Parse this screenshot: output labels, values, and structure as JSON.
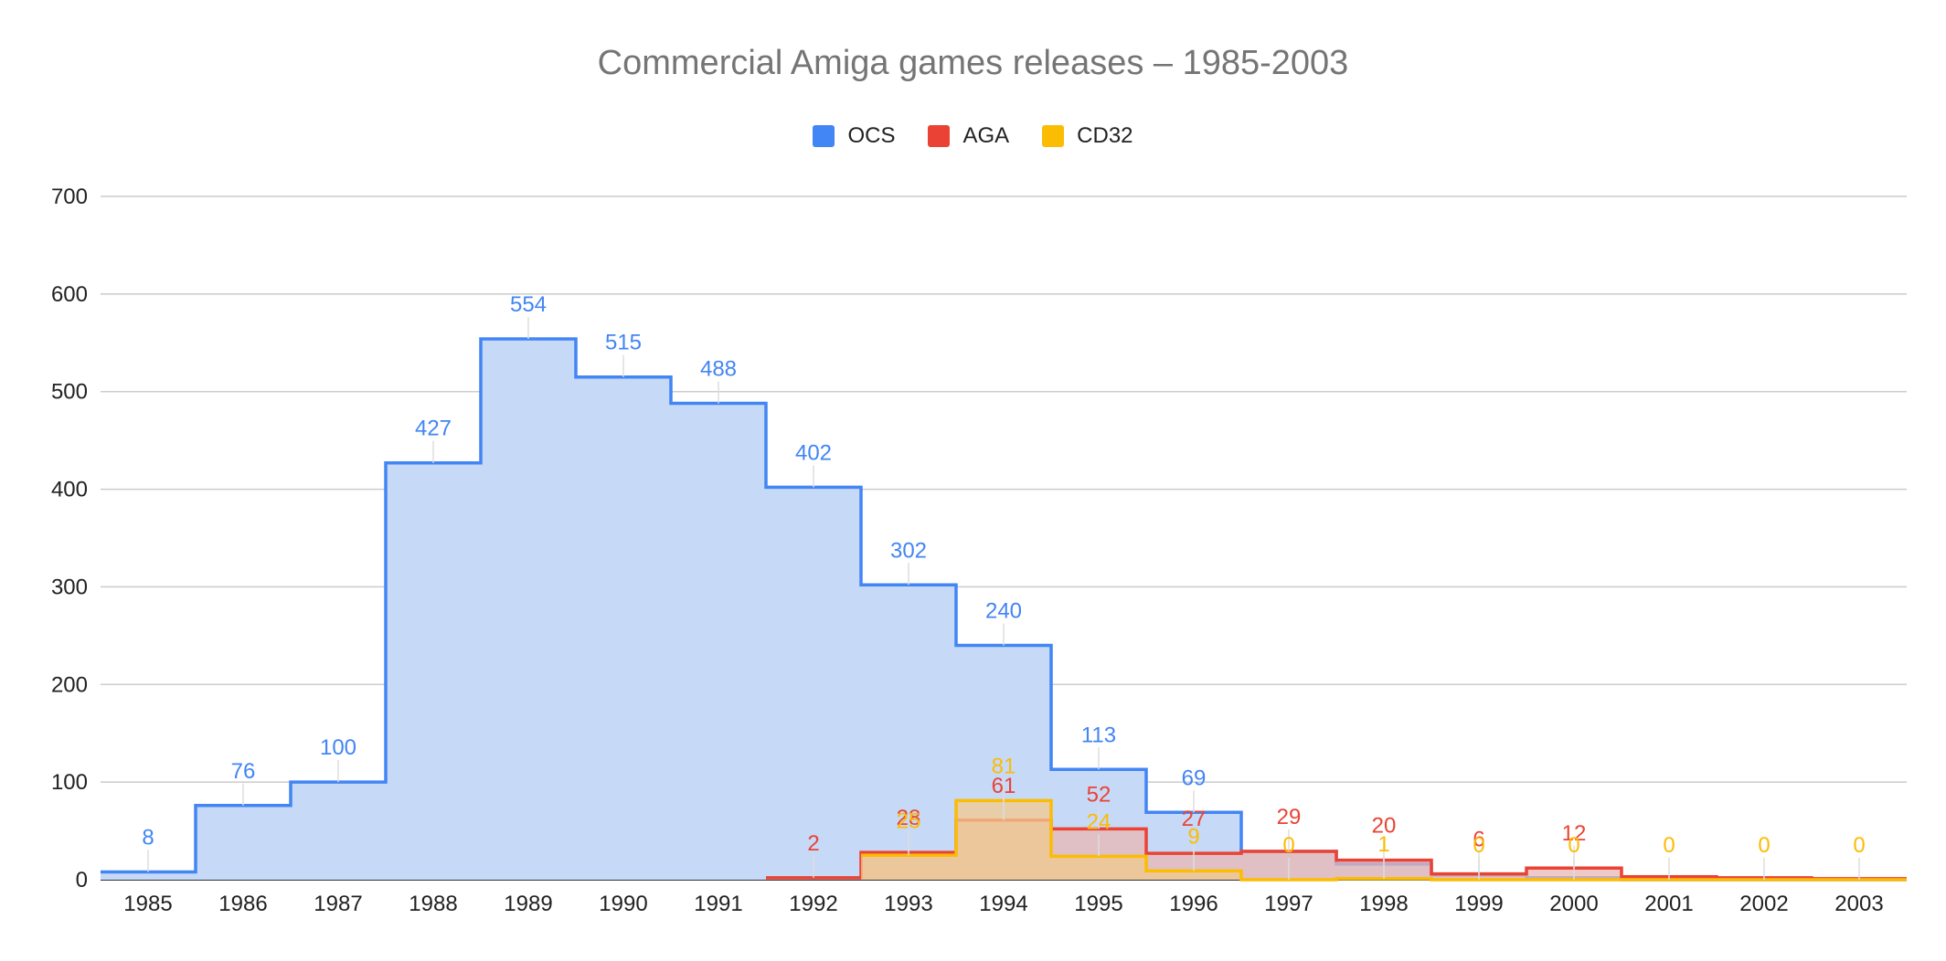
{
  "chart_data": {
    "type": "area",
    "title": "Commercial Amiga games releases – 1985-2003",
    "xlabel": "",
    "ylabel": "",
    "ylim": [
      0,
      700
    ],
    "yticks": [
      "0",
      "100",
      "200",
      "300",
      "400",
      "500",
      "600",
      "700"
    ],
    "categories": [
      "1985",
      "1986",
      "1987",
      "1988",
      "1989",
      "1990",
      "1991",
      "1992",
      "1993",
      "1994",
      "1995",
      "1996",
      "1997",
      "1998",
      "1999",
      "2000",
      "2001",
      "2002",
      "2003"
    ],
    "legend_position": "top",
    "grid": true,
    "series": [
      {
        "name": "OCS",
        "color": "#4285f4",
        "fill": "#c6d9f7",
        "values": [
          8,
          76,
          100,
          427,
          554,
          515,
          488,
          402,
          302,
          240,
          113,
          69,
          29,
          16,
          5,
          2,
          0,
          0,
          0
        ],
        "labels": [
          "8",
          "76",
          "100",
          "427",
          "554",
          "515",
          "488",
          "402",
          "302",
          "240",
          "113",
          "69",
          "",
          "",
          "",
          "",
          "",
          "",
          ""
        ]
      },
      {
        "name": "AGA",
        "color": "#ea4335",
        "fill": "#e8b7b3",
        "values": [
          null,
          null,
          null,
          null,
          null,
          null,
          null,
          2,
          28,
          61,
          52,
          27,
          29,
          20,
          6,
          12,
          3,
          2,
          1
        ],
        "labels": [
          "",
          "",
          "",
          "",
          "",
          "",
          "",
          "2",
          "28",
          "61",
          "52",
          "27",
          "29",
          "20",
          "6",
          "12",
          "",
          "",
          ""
        ]
      },
      {
        "name": "CD32",
        "color": "#fbbc04",
        "fill": "#f2c98f",
        "values": [
          null,
          null,
          null,
          null,
          null,
          null,
          null,
          null,
          25,
          81,
          24,
          9,
          0,
          1,
          0,
          0,
          0,
          0,
          0
        ],
        "labels": [
          "",
          "",
          "",
          "",
          "",
          "",
          "",
          "",
          "25",
          "81",
          "24",
          "9",
          "0",
          "1",
          "0",
          "0",
          "0",
          "0",
          "0"
        ]
      }
    ]
  }
}
